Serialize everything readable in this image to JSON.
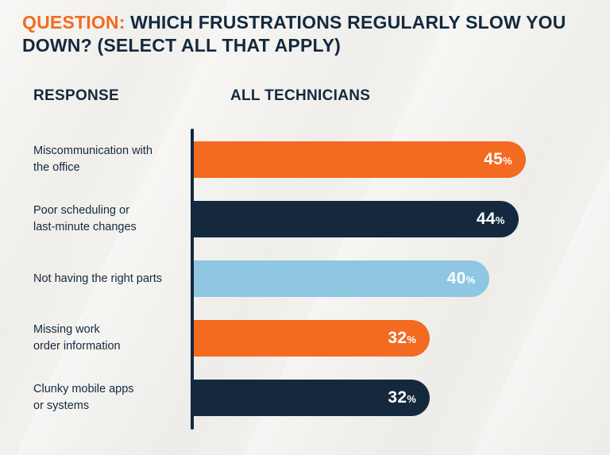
{
  "header": {
    "question_prefix": "QUESTION:",
    "question_text": " WHICH FRUSTRATIONS REGULARLY SLOW YOU DOWN? (SELECT ALL THAT APPLY)"
  },
  "columns": {
    "response": "RESPONSE",
    "all_technicians": "ALL TECHNICIANS"
  },
  "colors": {
    "accent_orange": "#F26B21",
    "navy": "#14293D",
    "light_blue": "#8FC7E2",
    "background": "#F2F1EE"
  },
  "chart_data": {
    "type": "bar",
    "orientation": "horizontal",
    "title": "Which frustrations regularly slow you down? (Select all that apply)",
    "xlabel": "",
    "ylabel": "Response",
    "xlim": [
      0,
      45
    ],
    "grid": false,
    "legend": "none",
    "value_suffix": "%",
    "categories": [
      "Miscommunication with\nthe office",
      "Poor scheduling or\nlast-minute changes",
      "Not having the right parts",
      "Missing work\norder information",
      "Clunky mobile apps\nor systems"
    ],
    "values": [
      45,
      44,
      40,
      32,
      32
    ],
    "bar_colors": [
      "#F26B21",
      "#14293D",
      "#8FC7E2",
      "#F26B21",
      "#14293D"
    ]
  }
}
